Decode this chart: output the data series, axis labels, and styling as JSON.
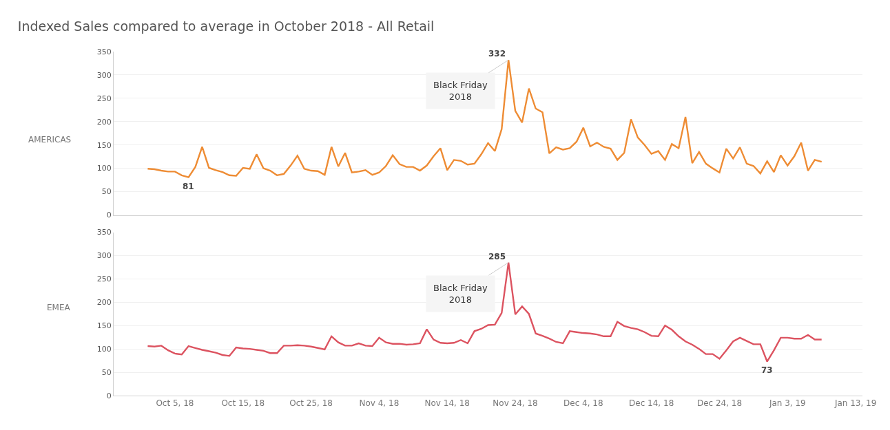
{
  "chart_data": [
    {
      "type": "line",
      "title": "Indexed Sales compared to average in October 2018 - All Retail",
      "ylabel": "AMERICAS",
      "x": [
        "2018-10-01",
        "2018-10-02",
        "2018-10-03",
        "2018-10-04",
        "2018-10-05",
        "2018-10-06",
        "2018-10-07",
        "2018-10-08",
        "2018-10-09",
        "2018-10-10",
        "2018-10-11",
        "2018-10-12",
        "2018-10-13",
        "2018-10-14",
        "2018-10-15",
        "2018-10-16",
        "2018-10-17",
        "2018-10-18",
        "2018-10-19",
        "2018-10-20",
        "2018-10-21",
        "2018-10-22",
        "2018-10-23",
        "2018-10-24",
        "2018-10-25",
        "2018-10-26",
        "2018-10-27",
        "2018-10-28",
        "2018-10-29",
        "2018-10-30",
        "2018-10-31",
        "2018-11-01",
        "2018-11-02",
        "2018-11-03",
        "2018-11-04",
        "2018-11-05",
        "2018-11-06",
        "2018-11-07",
        "2018-11-08",
        "2018-11-09",
        "2018-11-10",
        "2018-11-11",
        "2018-11-12",
        "2018-11-13",
        "2018-11-14",
        "2018-11-15",
        "2018-11-16",
        "2018-11-17",
        "2018-11-18",
        "2018-11-19",
        "2018-11-20",
        "2018-11-21",
        "2018-11-22",
        "2018-11-23",
        "2018-11-24",
        "2018-11-25",
        "2018-11-26",
        "2018-11-27",
        "2018-11-28",
        "2018-11-29",
        "2018-11-30",
        "2018-12-01",
        "2018-12-02",
        "2018-12-03",
        "2018-12-04",
        "2018-12-05",
        "2018-12-06",
        "2018-12-07",
        "2018-12-08",
        "2018-12-09",
        "2018-12-10",
        "2018-12-11",
        "2018-12-12",
        "2018-12-13",
        "2018-12-14",
        "2018-12-15",
        "2018-12-16",
        "2018-12-17",
        "2018-12-18",
        "2018-12-19",
        "2018-12-20",
        "2018-12-21",
        "2018-12-22",
        "2018-12-23",
        "2018-12-24",
        "2018-12-25",
        "2018-12-26",
        "2018-12-27",
        "2018-12-28",
        "2018-12-29",
        "2018-12-30",
        "2018-12-31",
        "2019-01-01",
        "2019-01-02",
        "2019-01-03",
        "2019-01-04",
        "2019-01-05",
        "2019-01-06",
        "2019-01-07",
        "2019-01-08"
      ],
      "series": [
        {
          "color": "#ee8c34",
          "values": [
            99,
            98,
            95,
            93,
            93,
            85,
            81,
            103,
            146,
            101,
            96,
            92,
            85,
            84,
            101,
            99,
            130,
            100,
            95,
            85,
            88,
            106,
            127,
            99,
            95,
            94,
            86,
            146,
            104,
            133,
            91,
            93,
            96,
            86,
            91,
            105,
            128,
            109,
            103,
            103,
            95,
            106,
            126,
            143,
            96,
            118,
            116,
            108,
            110,
            130,
            154,
            137,
            184,
            332,
            223,
            198,
            271,
            228,
            220,
            132,
            145,
            140,
            143,
            157,
            187,
            147,
            155,
            146,
            142,
            118,
            133,
            205,
            166,
            150,
            131,
            137,
            118,
            152,
            143,
            210,
            111,
            135,
            110,
            100,
            91,
            142,
            121,
            145,
            110,
            105,
            89,
            115,
            92,
            128,
            106,
            126,
            155,
            95,
            118,
            114
          ],
          "value_labels": [
            null,
            null,
            null,
            null,
            null,
            null,
            "81",
            null,
            null,
            null,
            null,
            null,
            null,
            null,
            null,
            null,
            null,
            null,
            null,
            null,
            null,
            null,
            null,
            null,
            null,
            null,
            null,
            null,
            null,
            null,
            null,
            null,
            null,
            null,
            null,
            null,
            null,
            null,
            null,
            null,
            null,
            null,
            null,
            null,
            null,
            null,
            null,
            null,
            null,
            null,
            null,
            null,
            null,
            "332",
            null,
            null,
            null,
            null,
            null,
            null,
            null,
            null,
            null,
            null,
            null,
            null,
            null,
            null,
            null,
            null,
            null,
            null,
            null,
            null,
            null,
            null,
            null,
            null,
            null,
            null,
            null,
            null,
            null,
            null,
            null,
            null,
            null,
            null,
            null,
            null,
            null,
            null,
            null,
            null,
            null,
            null,
            null,
            null,
            null,
            null
          ]
        }
      ],
      "annotations": [
        {
          "text": "Black Friday\n2018",
          "x": "2018-11-23",
          "y": 332
        }
      ],
      "xlim": [
        "2018-09-26",
        "2019-01-14"
      ],
      "ylim": [
        0,
        350
      ],
      "yticks": [
        0,
        50,
        100,
        150,
        200,
        250,
        300,
        350
      ],
      "grid": "y",
      "tick_labels": "y"
    },
    {
      "type": "line",
      "ylabel": "EMEA",
      "x": [
        "2018-10-01",
        "2018-10-02",
        "2018-10-03",
        "2018-10-04",
        "2018-10-05",
        "2018-10-06",
        "2018-10-07",
        "2018-10-08",
        "2018-10-09",
        "2018-10-10",
        "2018-10-11",
        "2018-10-12",
        "2018-10-13",
        "2018-10-14",
        "2018-10-15",
        "2018-10-16",
        "2018-10-17",
        "2018-10-18",
        "2018-10-19",
        "2018-10-20",
        "2018-10-21",
        "2018-10-22",
        "2018-10-23",
        "2018-10-24",
        "2018-10-25",
        "2018-10-26",
        "2018-10-27",
        "2018-10-28",
        "2018-10-29",
        "2018-10-30",
        "2018-10-31",
        "2018-11-01",
        "2018-11-02",
        "2018-11-03",
        "2018-11-04",
        "2018-11-05",
        "2018-11-06",
        "2018-11-07",
        "2018-11-08",
        "2018-11-09",
        "2018-11-10",
        "2018-11-11",
        "2018-11-12",
        "2018-11-13",
        "2018-11-14",
        "2018-11-15",
        "2018-11-16",
        "2018-11-17",
        "2018-11-18",
        "2018-11-19",
        "2018-11-20",
        "2018-11-21",
        "2018-11-22",
        "2018-11-23",
        "2018-11-24",
        "2018-11-25",
        "2018-11-26",
        "2018-11-27",
        "2018-11-28",
        "2018-11-29",
        "2018-11-30",
        "2018-12-01",
        "2018-12-02",
        "2018-12-03",
        "2018-12-04",
        "2018-12-05",
        "2018-12-06",
        "2018-12-07",
        "2018-12-08",
        "2018-12-09",
        "2018-12-10",
        "2018-12-11",
        "2018-12-12",
        "2018-12-13",
        "2018-12-14",
        "2018-12-15",
        "2018-12-16",
        "2018-12-17",
        "2018-12-18",
        "2018-12-19",
        "2018-12-20",
        "2018-12-21",
        "2018-12-22",
        "2018-12-23",
        "2018-12-24",
        "2018-12-25",
        "2018-12-26",
        "2018-12-27",
        "2018-12-28",
        "2018-12-29",
        "2018-12-30",
        "2018-12-31",
        "2019-01-01",
        "2019-01-02",
        "2019-01-03",
        "2019-01-04",
        "2019-01-05",
        "2019-01-06",
        "2019-01-07",
        "2019-01-08"
      ],
      "series": [
        {
          "color": "#dc5360",
          "values": [
            106,
            105,
            107,
            97,
            90,
            88,
            106,
            102,
            98,
            95,
            92,
            87,
            85,
            103,
            101,
            100,
            98,
            96,
            91,
            91,
            107,
            107,
            108,
            107,
            105,
            102,
            99,
            127,
            114,
            107,
            107,
            112,
            107,
            106,
            124,
            114,
            111,
            111,
            109,
            110,
            112,
            142,
            120,
            113,
            112,
            113,
            119,
            112,
            138,
            143,
            151,
            152,
            177,
            285,
            174,
            191,
            175,
            133,
            128,
            122,
            115,
            112,
            138,
            136,
            134,
            133,
            131,
            127,
            127,
            158,
            149,
            145,
            142,
            136,
            128,
            127,
            150,
            141,
            127,
            116,
            109,
            100,
            89,
            89,
            79,
            97,
            116,
            124,
            117,
            110,
            110,
            73,
            97,
            124,
            124,
            122,
            122,
            130,
            120,
            120
          ],
          "value_labels": [
            null,
            null,
            null,
            null,
            null,
            null,
            null,
            null,
            null,
            null,
            null,
            null,
            null,
            null,
            null,
            null,
            null,
            null,
            null,
            null,
            null,
            null,
            null,
            null,
            null,
            null,
            null,
            null,
            null,
            null,
            null,
            null,
            null,
            null,
            null,
            null,
            null,
            null,
            null,
            null,
            null,
            null,
            null,
            null,
            null,
            null,
            null,
            null,
            null,
            null,
            null,
            null,
            null,
            "285",
            null,
            null,
            null,
            null,
            null,
            null,
            null,
            null,
            null,
            null,
            null,
            null,
            null,
            null,
            null,
            null,
            null,
            null,
            null,
            null,
            null,
            null,
            null,
            null,
            null,
            null,
            null,
            null,
            null,
            null,
            null,
            null,
            null,
            null,
            null,
            null,
            null,
            "73",
            null,
            null,
            null,
            null,
            null,
            null,
            null,
            null
          ]
        }
      ],
      "annotations": [
        {
          "text": "Black Friday\n2018",
          "x": "2018-11-23",
          "y": 285
        }
      ],
      "xlim": [
        "2018-09-26",
        "2019-01-14"
      ],
      "xticks": [
        {
          "value": "2018-10-05",
          "label": "Oct 5, 18"
        },
        {
          "value": "2018-10-15",
          "label": "Oct 15, 18"
        },
        {
          "value": "2018-10-25",
          "label": "Oct 25, 18"
        },
        {
          "value": "2018-11-04",
          "label": "Nov 4, 18"
        },
        {
          "value": "2018-11-14",
          "label": "Nov 14, 18"
        },
        {
          "value": "2018-11-24",
          "label": "Nov 24, 18"
        },
        {
          "value": "2018-12-04",
          "label": "Dec 4, 18"
        },
        {
          "value": "2018-12-14",
          "label": "Dec 14, 18"
        },
        {
          "value": "2018-12-24",
          "label": "Dec 24, 18"
        },
        {
          "value": "2019-01-03",
          "label": "Jan 3, 19"
        },
        {
          "value": "2019-01-13",
          "label": "Jan 13, 19"
        }
      ],
      "ylim": [
        0,
        350
      ],
      "yticks": [
        0,
        50,
        100,
        150,
        200,
        250,
        300,
        350
      ],
      "grid": "y"
    }
  ]
}
